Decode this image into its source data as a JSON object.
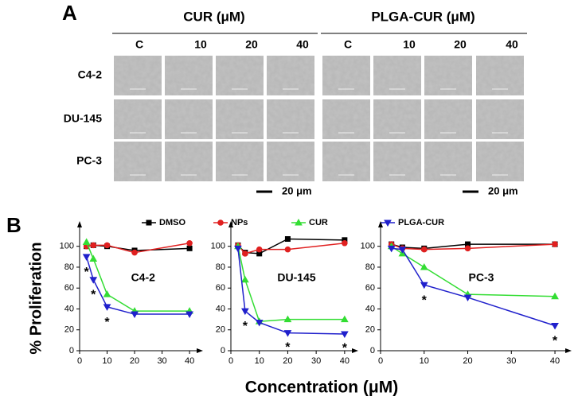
{
  "panel_a": {
    "label": "A",
    "groups": [
      {
        "title": "CUR (μM)",
        "columns": [
          "C",
          "10",
          "20",
          "40"
        ]
      },
      {
        "title": "PLGA-CUR (μM)",
        "columns": [
          "C",
          "10",
          "20",
          "40"
        ]
      }
    ],
    "rows": [
      "C4-2",
      "DU-145",
      "PC-3"
    ],
    "scale_bars": [
      "20 μm",
      "20 μm"
    ]
  },
  "panel_b": {
    "label": "B",
    "y_label": "% Proliferation",
    "x_label": "Concentration (μM)",
    "legend": [
      {
        "name": "DMSO",
        "color": "#000000",
        "marker": "square"
      },
      {
        "name": "NPs",
        "color": "#e02020",
        "marker": "circle"
      },
      {
        "name": "CUR",
        "color": "#33dd33",
        "marker": "triangle-up"
      },
      {
        "name": "PLGA-CUR",
        "color": "#2020cc",
        "marker": "triangle-down"
      }
    ]
  },
  "chart_data": [
    {
      "type": "line",
      "title": "C4-2",
      "x": [
        2.5,
        5,
        10,
        20,
        40
      ],
      "xlim": [
        0,
        42
      ],
      "xticks": [
        0,
        10,
        20,
        30,
        40
      ],
      "ylim": [
        0,
        115
      ],
      "yticks": [
        0,
        20,
        40,
        60,
        80,
        100
      ],
      "series": [
        {
          "color": "#000000",
          "values": [
            100,
            101,
            100,
            96,
            98
          ]
        },
        {
          "color": "#e02020",
          "values": [
            100,
            101,
            101,
            94,
            103
          ]
        },
        {
          "color": "#33dd33",
          "values": [
            104,
            88,
            54,
            38,
            38
          ]
        },
        {
          "color": "#2020cc",
          "values": [
            90,
            68,
            42,
            35,
            35
          ]
        }
      ],
      "annotations": [
        {
          "text": "*",
          "x": 2.5,
          "y": 78
        },
        {
          "text": "*",
          "x": 5,
          "y": 56
        },
        {
          "text": "*",
          "x": 10,
          "y": 30
        }
      ]
    },
    {
      "type": "line",
      "title": "DU-145",
      "x": [
        2.5,
        5,
        10,
        20,
        40
      ],
      "xlim": [
        0,
        42
      ],
      "xticks": [
        0,
        10,
        20,
        30,
        40
      ],
      "ylim": [
        0,
        115
      ],
      "yticks": [
        0,
        20,
        40,
        60,
        80,
        100
      ],
      "series": [
        {
          "color": "#000000",
          "values": [
            101,
            94,
            93,
            107,
            106
          ]
        },
        {
          "color": "#e02020",
          "values": [
            101,
            93,
            97,
            97,
            103
          ]
        },
        {
          "color": "#33dd33",
          "values": [
            100,
            68,
            28,
            30,
            30
          ]
        },
        {
          "color": "#2020cc",
          "values": [
            98,
            38,
            27,
            17,
            16
          ]
        }
      ],
      "annotations": [
        {
          "text": "*",
          "x": 5,
          "y": 26
        },
        {
          "text": "*",
          "x": 20,
          "y": 6
        },
        {
          "text": "*",
          "x": 40,
          "y": 5
        }
      ]
    },
    {
      "type": "line",
      "title": "PC-3",
      "x": [
        2.5,
        5,
        10,
        20,
        40
      ],
      "xlim": [
        0,
        42
      ],
      "xticks": [
        0,
        10,
        20,
        30,
        40
      ],
      "ylim": [
        0,
        115
      ],
      "yticks": [
        0,
        20,
        40,
        60,
        80,
        100
      ],
      "series": [
        {
          "color": "#000000",
          "values": [
            102,
            99,
            98,
            102,
            102
          ]
        },
        {
          "color": "#e02020",
          "values": [
            102,
            98,
            97,
            98,
            102
          ]
        },
        {
          "color": "#33dd33",
          "values": [
            100,
            93,
            80,
            54,
            52
          ]
        },
        {
          "color": "#2020cc",
          "values": [
            98,
            97,
            63,
            51,
            24
          ]
        }
      ],
      "annotations": [
        {
          "text": "*",
          "x": 10,
          "y": 51
        },
        {
          "text": "*",
          "x": 40,
          "y": 12
        }
      ]
    }
  ]
}
